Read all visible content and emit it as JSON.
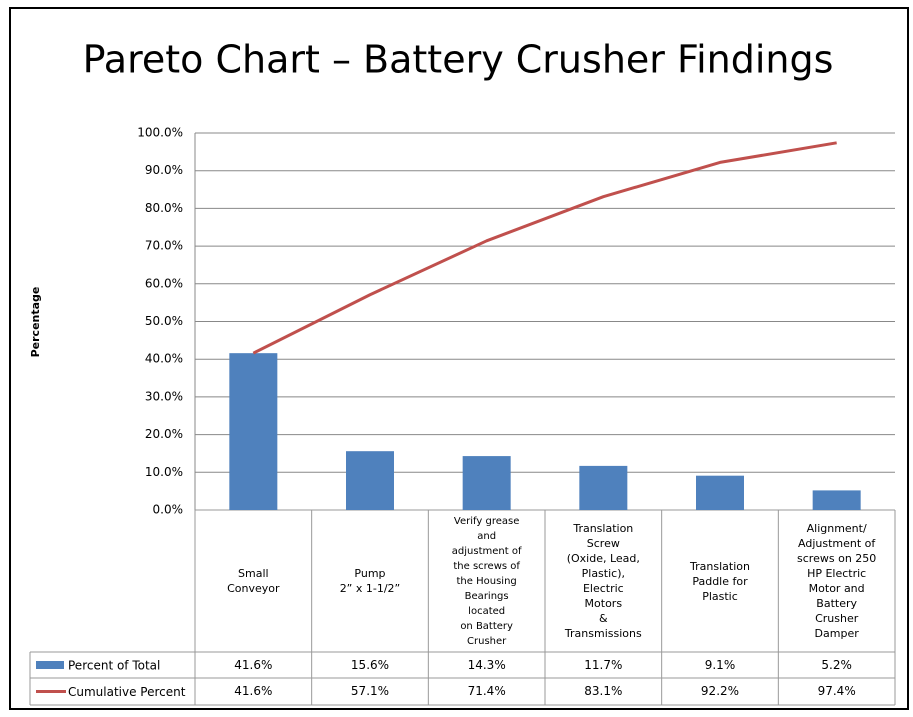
{
  "chart_data": {
    "type": "pareto",
    "title": "Pareto Chart – Battery Crusher Findings",
    "y_label": "Percentage",
    "categories": [
      "Small\nConveyor",
      "Pump\n2” x 1-1/2”",
      "Verify grease\nand\nadjustment of\nthe screws of\nthe Housing\nBearings\nlocated\non Battery\nCrusher",
      "Translation\nScrew\n(Oxide, Lead,\nPlastic),\nElectric\nMotors\n&\nTransmissions",
      "Translation\nPaddle for\nPlastic",
      "Alignment/\nAdjustment of\nscrews on 250\nHP Electric\nMotor and\nBattery\nCrusher\nDamper"
    ],
    "series": [
      {
        "name": "Percent of Total",
        "type": "bar",
        "color": "#4f81bd",
        "values": [
          41.6,
          15.6,
          14.3,
          11.7,
          9.1,
          5.2
        ],
        "value_labels": [
          "41.6%",
          "15.6%",
          "14.3%",
          "11.7%",
          "9.1%",
          "5.2%"
        ]
      },
      {
        "name": "Cumulative Percent",
        "type": "line",
        "color": "#c0504d",
        "values": [
          41.6,
          57.1,
          71.4,
          83.1,
          92.2,
          97.4
        ],
        "value_labels": [
          "41.6%",
          "57.1%",
          "71.4%",
          "83.1%",
          "92.2%",
          "97.4%"
        ]
      }
    ],
    "ylim": [
      0,
      100
    ],
    "yticks": [
      {
        "value": 0,
        "label": "0.0%"
      },
      {
        "value": 10,
        "label": "10.0%"
      },
      {
        "value": 20,
        "label": "20.0%"
      },
      {
        "value": 30,
        "label": "30.0%"
      },
      {
        "value": 40,
        "label": "40.0%"
      },
      {
        "value": 50,
        "label": "50.0%"
      },
      {
        "value": 60,
        "label": "60.0%"
      },
      {
        "value": 70,
        "label": "70.0%"
      },
      {
        "value": 80,
        "label": "80.0%"
      },
      {
        "value": 90,
        "label": "90.0%"
      },
      {
        "value": 100,
        "label": "100.0%"
      }
    ],
    "grid": true
  }
}
